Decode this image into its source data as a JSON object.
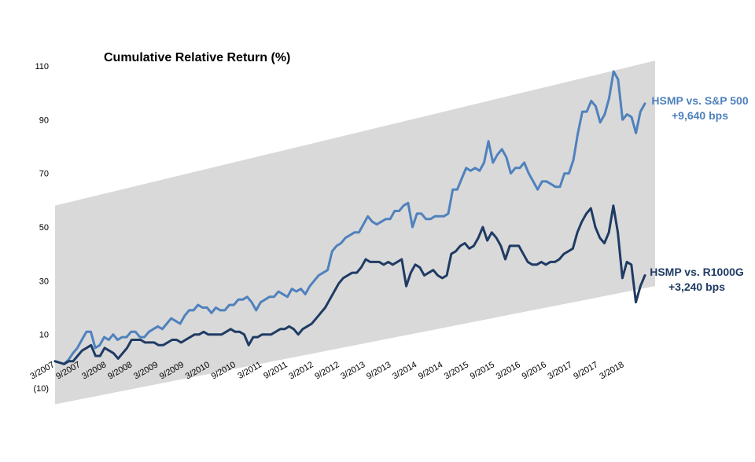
{
  "chart_data": {
    "type": "line",
    "title": "Cumulative Relative Return (%)",
    "xlabel": "",
    "ylabel": "",
    "ylim": [
      -10,
      110
    ],
    "y_ticks": [
      "110",
      "90",
      "70",
      "50",
      "30",
      "10",
      "(10)"
    ],
    "y_tick_values": [
      110,
      90,
      70,
      50,
      30,
      10,
      -10
    ],
    "x_ticks": [
      "3/2007",
      "9/2007",
      "3/2008",
      "9/2008",
      "3/2009",
      "9/2009",
      "3/2010",
      "9/2010",
      "3/2011",
      "9/2011",
      "3/2012",
      "9/2012",
      "3/2013",
      "9/2013",
      "3/2014",
      "9/2014",
      "3/2015",
      "9/2015",
      "3/2016",
      "9/2016",
      "3/2017",
      "9/2017",
      "3/2018"
    ],
    "grid": false,
    "legend": "none",
    "band": {
      "start_low": -16,
      "start_high": 58,
      "end_low": 28,
      "end_high": 112
    },
    "annotations": [
      {
        "line1": "HSMP vs. S&P 500",
        "line2": "+9,640 bps",
        "color": "#4F81BD"
      },
      {
        "line1": "HSMP vs. R1000G",
        "line2": "+3,240 bps",
        "color": "#1F3B64"
      }
    ],
    "series": [
      {
        "color": "#4F81BD",
        "values": [
          0,
          -0.5,
          -1,
          0.5,
          3,
          5,
          8,
          11,
          11,
          5,
          6,
          9,
          8,
          10,
          8,
          9,
          9,
          11,
          11,
          9,
          9,
          11,
          12,
          13,
          12,
          14,
          16,
          15,
          14,
          17,
          19,
          19,
          21,
          20,
          20,
          18,
          20,
          19,
          19,
          21,
          21,
          23,
          23,
          24,
          22,
          19,
          22,
          23,
          24,
          24,
          26,
          25,
          24,
          27,
          26,
          27,
          25,
          28,
          30,
          32,
          33,
          34,
          41,
          43,
          44,
          46,
          47,
          48,
          48,
          51,
          54,
          52,
          51,
          52,
          53,
          53,
          56,
          56,
          58,
          59,
          50,
          55,
          55,
          53,
          53,
          54,
          54,
          54,
          55,
          64,
          64,
          68,
          72,
          71,
          72,
          71,
          74,
          82,
          74,
          77,
          79,
          76,
          70,
          72,
          72,
          74,
          70,
          67,
          64,
          67,
          67,
          66,
          65,
          65,
          70,
          70,
          75,
          85,
          93,
          93,
          97,
          95,
          89,
          92,
          98,
          108,
          105,
          90,
          92,
          91,
          85,
          93,
          96
        ]
      },
      {
        "color": "#1F3B64",
        "values": [
          0,
          -0.5,
          -1,
          0,
          0,
          2,
          4,
          5,
          6,
          2,
          2,
          5,
          4,
          3,
          1,
          3,
          5,
          8,
          8,
          8,
          7,
          7,
          7,
          6,
          6,
          7,
          8,
          8,
          7,
          8,
          9,
          10,
          10,
          11,
          10,
          10,
          10,
          10,
          11,
          12,
          11,
          11,
          10,
          6,
          9,
          9,
          10,
          10,
          10,
          11,
          12,
          12,
          13,
          12,
          10,
          12,
          13,
          14,
          16,
          18,
          20,
          23,
          26,
          29,
          31,
          32,
          33,
          33,
          35,
          38,
          37,
          37,
          37,
          36,
          37,
          36,
          37,
          38,
          28,
          33,
          36,
          35,
          32,
          33,
          34,
          32,
          31,
          32,
          40,
          41,
          43,
          44,
          42,
          43,
          46,
          50,
          45,
          48,
          46,
          43,
          38,
          43,
          43,
          43,
          40,
          37,
          36,
          36,
          37,
          36,
          37,
          37,
          38,
          40,
          41,
          42,
          48,
          52,
          55,
          57,
          50,
          46,
          44,
          48,
          58,
          48,
          31,
          37,
          36,
          22,
          28,
          32
        ]
      }
    ]
  }
}
